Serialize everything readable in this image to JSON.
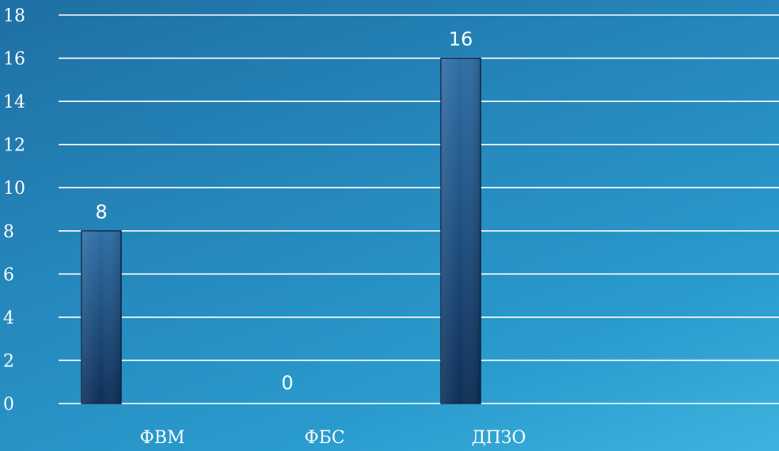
{
  "chart_data": {
    "type": "bar",
    "categories": [
      "ФВМ",
      "ФБС",
      "ДПЗО"
    ],
    "values": [
      8,
      0,
      16
    ],
    "title": "",
    "xlabel": "",
    "ylabel": "",
    "ylim": [
      0,
      18
    ],
    "yticks": [
      0,
      2,
      4,
      6,
      8,
      10,
      12,
      14,
      16,
      18
    ],
    "grid": true,
    "data_labels": true,
    "colors": {
      "bar_top": "#2f6ea6",
      "bar_bottom": "#0d2f58",
      "bar_edge": "#0a2748",
      "grid": "#ffffff",
      "text": "#ffffff"
    }
  }
}
